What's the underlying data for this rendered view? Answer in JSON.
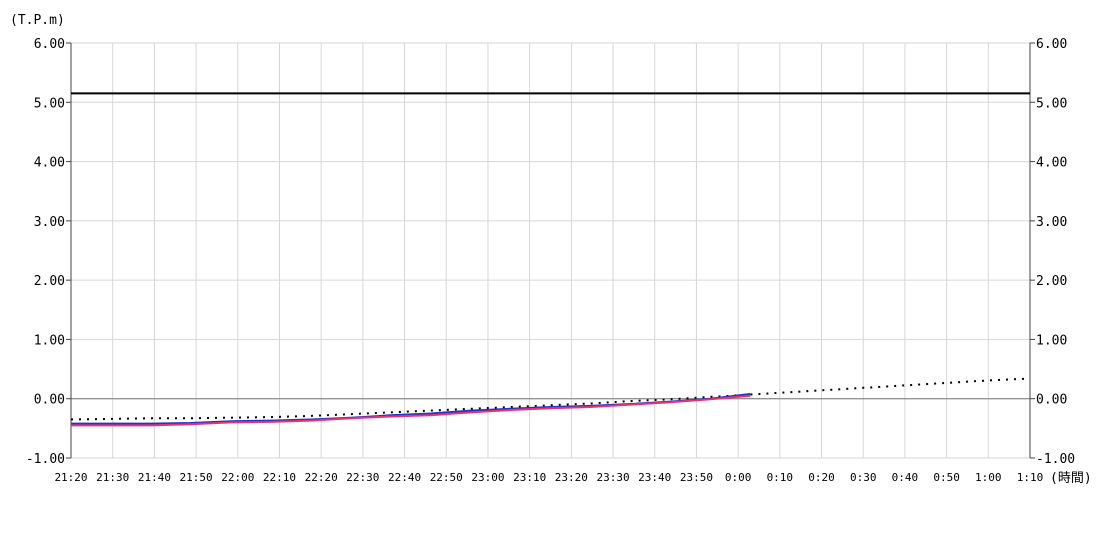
{
  "chart_data": {
    "type": "line",
    "ylabel": "(T.P.m)",
    "xlabel": "(時間)",
    "ylim": [
      -1.0,
      6.0
    ],
    "y_ticks": [
      "6.00",
      "5.00",
      "4.00",
      "3.00",
      "2.00",
      "1.00",
      "0.00",
      "-1.00"
    ],
    "x_ticks": [
      "21:20",
      "21:30",
      "21:40",
      "21:50",
      "22:00",
      "22:10",
      "22:20",
      "22:30",
      "22:40",
      "22:50",
      "23:00",
      "23:10",
      "23:20",
      "23:30",
      "23:40",
      "23:50",
      "0:00",
      "0:10",
      "0:20",
      "0:30",
      "0:40",
      "0:50",
      "1:00",
      "1:10"
    ],
    "grid": true,
    "reference_line": {
      "y": 5.15,
      "color": "#000000"
    },
    "series": [
      {
        "style": "dotted",
        "color": "#000000",
        "values": [
          -0.35,
          -0.34,
          -0.33,
          -0.33,
          -0.32,
          -0.31,
          -0.29,
          -0.26,
          -0.23,
          -0.2,
          -0.17,
          -0.14,
          -0.11,
          -0.08,
          -0.04,
          -0.01,
          0.03,
          0.07,
          0.11,
          0.15,
          0.19,
          0.23,
          0.27,
          0.31,
          0.34
        ]
      },
      {
        "style": "solid",
        "color": "#2233cc",
        "values": [
          -0.42,
          -0.42,
          -0.42,
          -0.41,
          -0.38,
          -0.37,
          -0.35,
          -0.32,
          -0.28,
          -0.25,
          -0.2,
          -0.17,
          -0.14,
          -0.12,
          -0.09,
          -0.05,
          0.0,
          0.08
        ]
      },
      {
        "style": "solid",
        "color": "#e8336e",
        "values": [
          -0.45,
          -0.45,
          -0.45,
          -0.43,
          -0.4,
          -0.39,
          -0.37,
          -0.33,
          -0.3,
          -0.28,
          -0.23,
          -0.19,
          -0.16,
          -0.14,
          -0.1,
          -0.06,
          -0.01,
          0.05
        ]
      }
    ]
  }
}
